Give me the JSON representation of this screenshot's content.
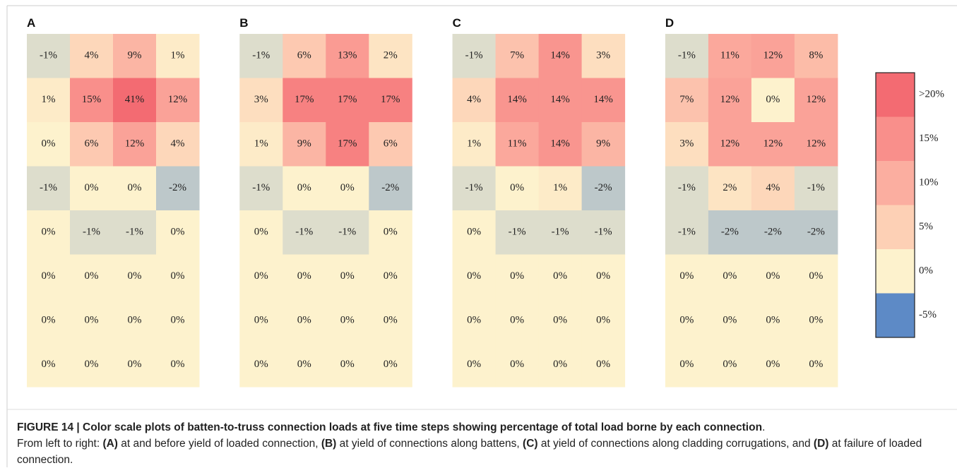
{
  "chart_data": [
    {
      "type": "heatmap",
      "title": "A",
      "values": [
        [
          -1,
          4,
          9,
          1
        ],
        [
          1,
          15,
          41,
          12
        ],
        [
          0,
          6,
          12,
          4
        ],
        [
          -1,
          0,
          0,
          -2
        ],
        [
          0,
          -1,
          -1,
          0
        ],
        [
          0,
          0,
          0,
          0
        ],
        [
          0,
          0,
          0,
          0
        ],
        [
          0,
          0,
          0,
          0
        ]
      ],
      "value_labels": [
        [
          "-1%",
          "4%",
          "9%",
          "1%"
        ],
        [
          "1%",
          "15%",
          "41%",
          "12%"
        ],
        [
          "0%",
          "6%",
          "12%",
          "4%"
        ],
        [
          "-1%",
          "0%",
          "0%",
          "-2%"
        ],
        [
          "0%",
          "-1%",
          "-1%",
          "0%"
        ],
        [
          "0%",
          "0%",
          "0%",
          "0%"
        ],
        [
          "0%",
          "0%",
          "0%",
          "0%"
        ],
        [
          "0%",
          "0%",
          "0%",
          "0%"
        ]
      ]
    },
    {
      "type": "heatmap",
      "title": "B",
      "values": [
        [
          -1,
          6,
          13,
          2
        ],
        [
          3,
          17,
          17,
          17
        ],
        [
          1,
          9,
          17,
          6
        ],
        [
          -1,
          0,
          0,
          -2
        ],
        [
          0,
          -1,
          -1,
          0
        ],
        [
          0,
          0,
          0,
          0
        ],
        [
          0,
          0,
          0,
          0
        ],
        [
          0,
          0,
          0,
          0
        ]
      ],
      "value_labels": [
        [
          "-1%",
          "6%",
          "13%",
          "2%"
        ],
        [
          "3%",
          "17%",
          "17%",
          "17%"
        ],
        [
          "1%",
          "9%",
          "17%",
          "6%"
        ],
        [
          "-1%",
          "0%",
          "0%",
          "-2%"
        ],
        [
          "0%",
          "-1%",
          "-1%",
          "0%"
        ],
        [
          "0%",
          "0%",
          "0%",
          "0%"
        ],
        [
          "0%",
          "0%",
          "0%",
          "0%"
        ],
        [
          "0%",
          "0%",
          "0%",
          "0%"
        ]
      ]
    },
    {
      "type": "heatmap",
      "title": "C",
      "values": [
        [
          -1,
          7,
          14,
          3
        ],
        [
          4,
          14,
          14,
          14
        ],
        [
          1,
          11,
          14,
          9
        ],
        [
          -1,
          0,
          1,
          -2
        ],
        [
          0,
          -1,
          -1,
          -1
        ],
        [
          0,
          0,
          0,
          0
        ],
        [
          0,
          0,
          0,
          0
        ],
        [
          0,
          0,
          0,
          0
        ]
      ],
      "value_labels": [
        [
          "-1%",
          "7%",
          "14%",
          "3%"
        ],
        [
          "4%",
          "14%",
          "14%",
          "14%"
        ],
        [
          "1%",
          "11%",
          "14%",
          "9%"
        ],
        [
          "-1%",
          "0%",
          "1%",
          "-2%"
        ],
        [
          "0%",
          "-1%",
          "-1%",
          "-1%"
        ],
        [
          "0%",
          "0%",
          "0%",
          "0%"
        ],
        [
          "0%",
          "0%",
          "0%",
          "0%"
        ],
        [
          "0%",
          "0%",
          "0%",
          "0%"
        ]
      ]
    },
    {
      "type": "heatmap",
      "title": "D",
      "values": [
        [
          -1,
          11,
          12,
          8
        ],
        [
          7,
          12,
          0,
          12
        ],
        [
          3,
          12,
          12,
          12
        ],
        [
          -1,
          2,
          4,
          -1
        ],
        [
          -1,
          -2,
          -2,
          -2
        ],
        [
          0,
          0,
          0,
          0
        ],
        [
          0,
          0,
          0,
          0
        ],
        [
          0,
          0,
          0,
          0
        ]
      ],
      "value_labels": [
        [
          "-1%",
          "11%",
          "12%",
          "8%"
        ],
        [
          "7%",
          "12%",
          "0%",
          "12%"
        ],
        [
          "3%",
          "12%",
          "12%",
          "12%"
        ],
        [
          "-1%",
          "2%",
          "4%",
          "-1%"
        ],
        [
          "-1%",
          "-2%",
          "-2%",
          "-2%"
        ],
        [
          "0%",
          "0%",
          "0%",
          "0%"
        ],
        [
          "0%",
          "0%",
          "0%",
          "0%"
        ],
        [
          "0%",
          "0%",
          "0%",
          "0%"
        ]
      ]
    }
  ],
  "colorbar": {
    "zlim": [
      -7.5,
      22.5
    ],
    "ticks": [
      {
        "value": 20,
        "label": ">20%"
      },
      {
        "value": 15,
        "label": "15%"
      },
      {
        "value": 10,
        "label": "10%"
      },
      {
        "value": 5,
        "label": "5%"
      },
      {
        "value": 0,
        "label": "0%"
      },
      {
        "value": -5,
        "label": "-5%"
      }
    ],
    "colors": [
      "#f36b72",
      "#f98f8b",
      "#fbaea0",
      "#fdd0b5",
      "#fdf2cd",
      "#5d8ac6"
    ]
  },
  "caption": {
    "lines": [
      [
        {
          "text": "FIGURE 14 | Color scale plots of batten-to-truss connection loads at five time steps showing percentage of total load borne by each connection",
          "bold": true
        },
        {
          "text": ".",
          "bold": false
        }
      ],
      [
        {
          "text": "From left to right: ",
          "bold": false
        },
        {
          "text": "(A)",
          "bold": true
        },
        {
          "text": " at and before yield of loaded connection, ",
          "bold": false
        },
        {
          "text": "(B)",
          "bold": true
        },
        {
          "text": " at yield of connections along battens, ",
          "bold": false
        },
        {
          "text": "(C)",
          "bold": true
        },
        {
          "text": " at yield of connections along cladding corrugations, and ",
          "bold": false
        },
        {
          "text": "(D)",
          "bold": true
        },
        {
          "text": " at failure of loaded connection.",
          "bold": false
        }
      ]
    ]
  }
}
